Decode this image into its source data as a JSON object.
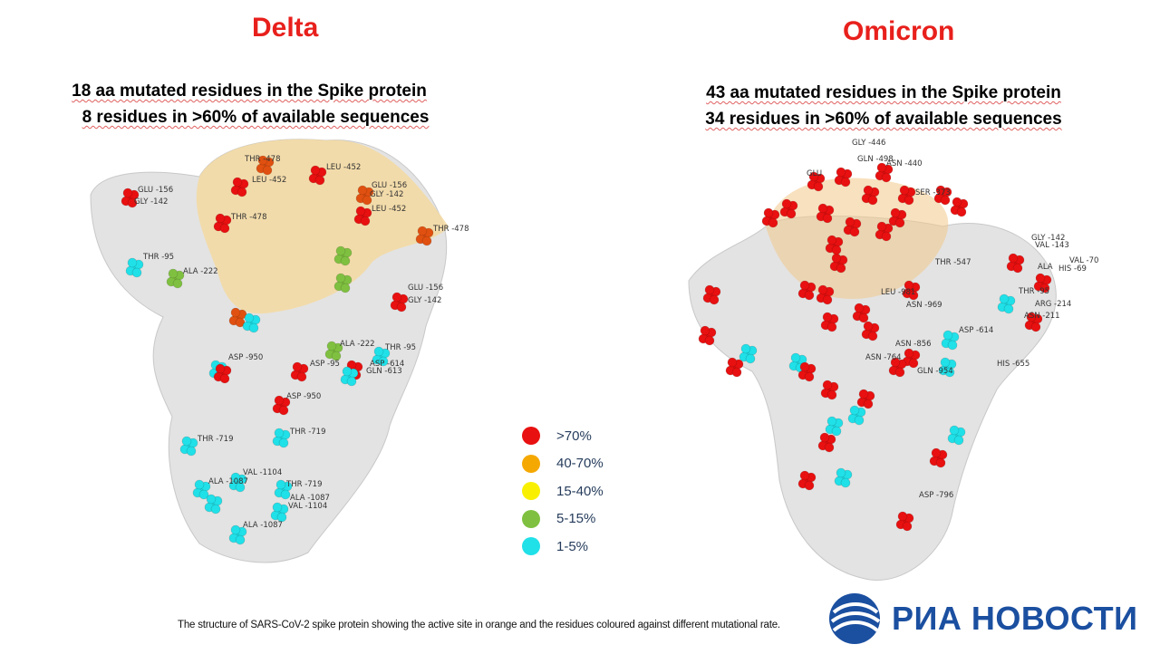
{
  "delta": {
    "title": "Delta",
    "subtitle_1": "18 aa mutated residues in the Spike protein",
    "subtitle_2": "8 residues in >60% of available sequences",
    "labels": [
      "GLU -156",
      "GLY -142",
      "THR -478",
      "LEU -452",
      "LEU -452",
      "GLU -156",
      "GLY -142",
      "LEU -452",
      "THR -478",
      "THR -478",
      "THR -95",
      "ALA -222",
      "GLU -156",
      "GLY -142",
      "ALA -222",
      "THR -95",
      "ASP -950",
      "ASP -95",
      "ASP -614",
      "GLN -613",
      "ASP -950",
      "THR -719",
      "THR -719",
      "VAL -1104",
      "ALA -1087",
      "THR -719",
      "ALA -1087",
      "VAL -1104",
      "ALA -1087"
    ]
  },
  "omicron": {
    "title": "Omicron",
    "subtitle_1": "43 aa mutated residues in the Spike protein",
    "subtitle_2": "34 residues in >60% of available sequences",
    "labels": [
      "GLY -446",
      "GLN -498",
      "ASN -440",
      "GLU",
      "SER -373",
      "THR -547",
      "GLY -142",
      "VAL -143",
      "VAL -70",
      "ALA",
      "HIS -69",
      "THR -95",
      "ARG -214",
      "ASN -211",
      "LEU -981",
      "ASN -969",
      "ASP -614",
      "ASN -856",
      "ASN -764",
      "GLN -954",
      "HIS -655",
      "ASP -796"
    ]
  },
  "legend": [
    {
      "label": ">70%",
      "color": "#e81010"
    },
    {
      "label": "40-70%",
      "color": "#f5a800"
    },
    {
      "label": "15-40%",
      "color": "#f8f000"
    },
    {
      "label": "5-15%",
      "color": "#7fc040"
    },
    {
      "label": "1-5%",
      "color": "#20e0e8"
    }
  ],
  "caption": "The structure of SARS-CoV-2 spike protein showing the active site in orange and the residues coloured against different mutational rate.",
  "logo": {
    "text": "РИА НОВОСТИ",
    "color": "#1b4fa0"
  },
  "colors": {
    "title": "#e8201c",
    "protein": "#d8d8d8",
    "active_site": "#f5d9a0"
  }
}
